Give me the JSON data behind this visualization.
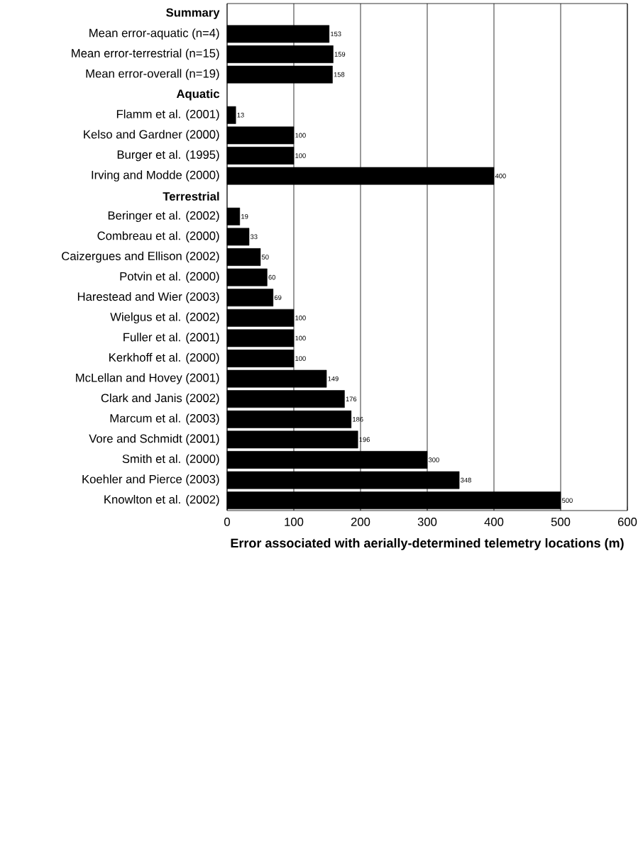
{
  "chart_data": {
    "type": "bar",
    "orientation": "horizontal",
    "xlabel": "Error associated with aerially-determined telemetry locations (m)",
    "categories": [
      "Summary",
      "Mean error-aquatic (n=4)",
      "Mean error-terrestrial (n=15)",
      "Mean error-overall (n=19)",
      "Aquatic",
      "Flamm et al. (2001)",
      "Kelso and Gardner (2000)",
      "Burger et al. (1995)",
      "Irving and Modde (2000)",
      "Terrestrial",
      "Beringer et al. (2002)",
      "Combreau et al. (2000)",
      "Caizergues and Ellison (2002)",
      "Potvin et al.  (2000)",
      "Harestead and Wier  (2003)",
      "Wielgus et al. (2002)",
      "Fuller et al. (2001)",
      "Kerkhoff et al. (2000)",
      "McLellan and Hovey (2001)",
      "Clark and Janis (2002)",
      "Marcum et al. (2003)",
      "Vore and Schmidt (2001)",
      "Smith et al. (2000)",
      "Koehler and Pierce (2003)",
      "Knowlton et al. (2002)"
    ],
    "values": [
      null,
      153,
      159,
      158,
      null,
      13,
      100,
      100,
      400,
      null,
      19,
      33,
      50,
      60,
      69,
      100,
      100,
      100,
      149,
      176,
      186,
      196,
      300,
      348,
      500
    ],
    "color": "#000000",
    "xlim": [
      0,
      600
    ],
    "xticks": [
      0,
      100,
      200,
      300,
      400,
      500,
      600
    ],
    "grid": "x",
    "data_labels": true
  }
}
